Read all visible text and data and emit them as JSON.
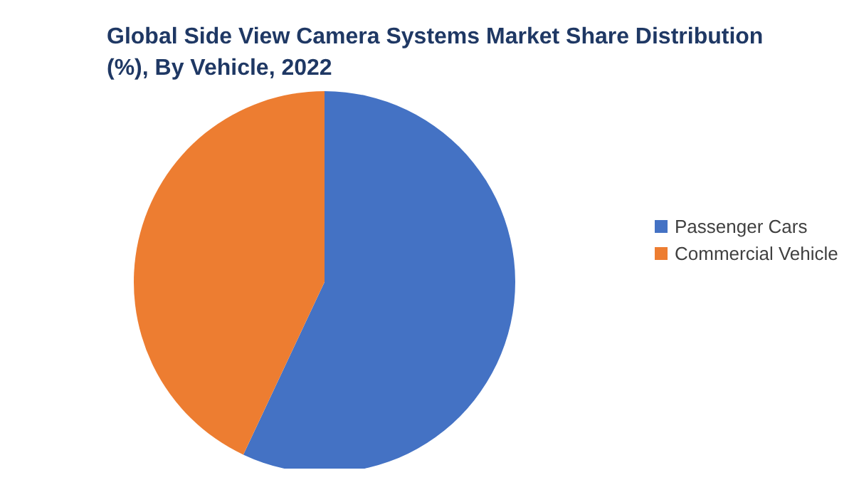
{
  "chart_data": {
    "type": "pie",
    "title": "Global Side View Camera Systems Market Share Distribution\n(%), By Vehicle, 2022",
    "categories": [
      "Passenger Cars",
      "Commercial Vehicle"
    ],
    "values": [
      57,
      43
    ],
    "colors": [
      "#4472c4",
      "#ed7d31"
    ],
    "legend": "right"
  }
}
